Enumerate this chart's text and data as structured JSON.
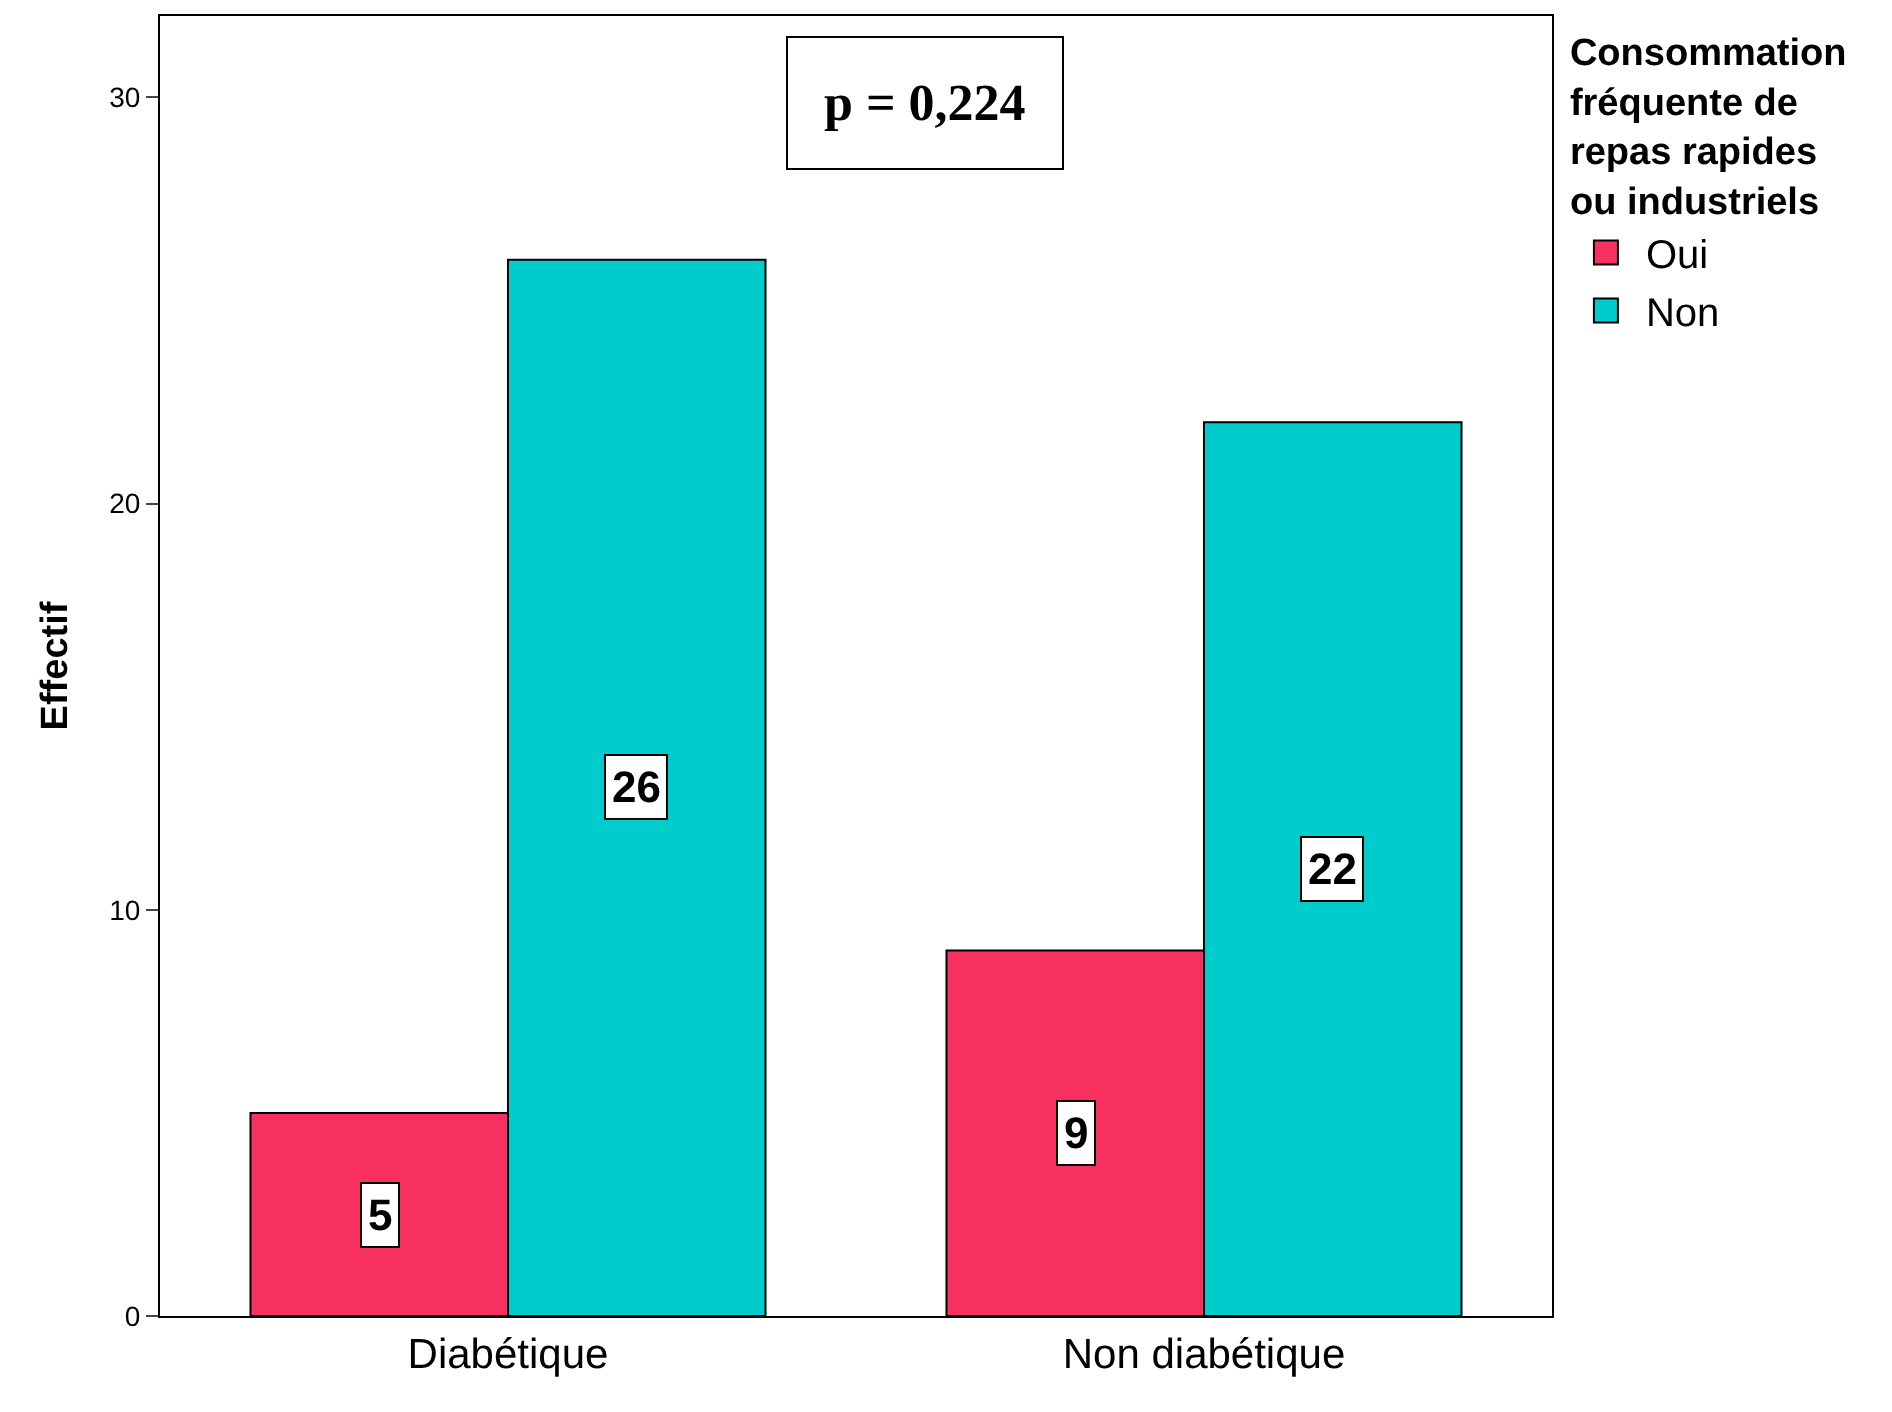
{
  "chart_data": {
    "type": "bar",
    "categories": [
      "Diabétique",
      "Non diabétique"
    ],
    "series": [
      {
        "name": "Oui",
        "color": "#f7305f",
        "values": [
          5,
          9
        ]
      },
      {
        "name": "Non",
        "color": "#00cccc",
        "values": [
          26,
          22
        ]
      }
    ],
    "ylabel": "Effectif",
    "legend_title": "Consommation\nfréquente de\nrepas rapides\nou industriels",
    "ylim": [
      0,
      32
    ],
    "yticks": [
      0,
      10,
      20,
      30
    ],
    "legend": "top right",
    "data_labels": true,
    "annotations": [
      "p = 0,224"
    ]
  }
}
